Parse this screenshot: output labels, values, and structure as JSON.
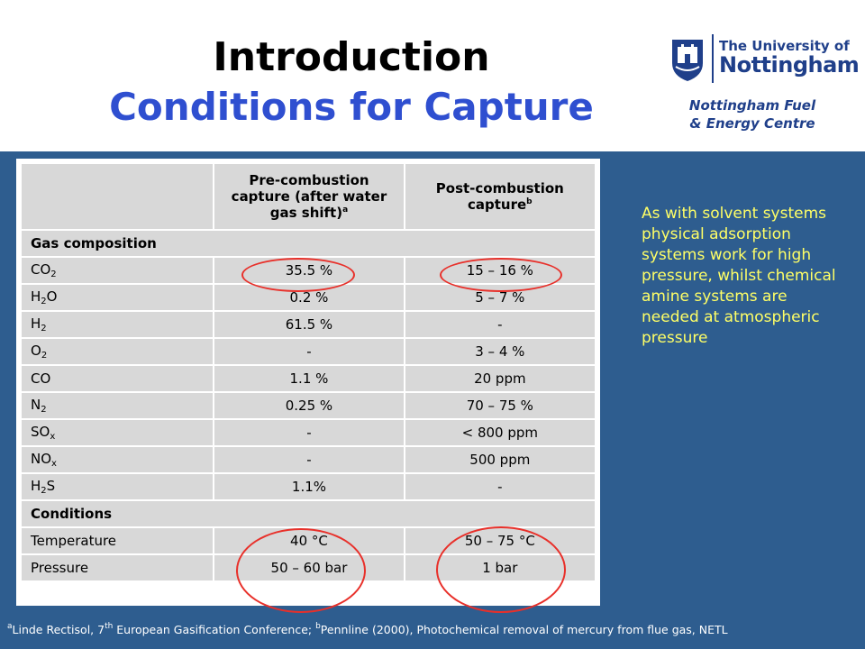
{
  "header": {
    "title": "Introduction",
    "subtitle": "Conditions for Capture",
    "logo_line1": "The University of",
    "logo_line2": "Nottingham",
    "centre_line1": "Nottingham Fuel",
    "centre_line2": "& Energy Centre"
  },
  "table": {
    "col1_header": "Pre-combustion capture (after water gas shift)",
    "col1_header_sup": "a",
    "col2_header": "Post-combustion capture",
    "col2_header_sup": "b",
    "section1": "Gas composition",
    "rows": [
      {
        "base": "CO",
        "sub": "2",
        "pre": "35.5 %",
        "post": "15 – 16 %"
      },
      {
        "base": "H",
        "sub": "2",
        "tail": "O",
        "pre": "0.2 %",
        "post": "5 – 7 %"
      },
      {
        "base": "H",
        "sub": "2",
        "pre": "61.5 %",
        "post": "-"
      },
      {
        "base": "O",
        "sub": "2",
        "pre": "-",
        "post": "3 – 4 %"
      },
      {
        "base": "CO",
        "pre": "1.1 %",
        "post": "20 ppm"
      },
      {
        "base": "N",
        "sub": "2",
        "pre": "0.25 %",
        "post": "70 – 75 %"
      },
      {
        "base": "SO",
        "sub": "x",
        "pre": "-",
        "post": "< 800 ppm"
      },
      {
        "base": "NO",
        "sub": "x",
        "pre": "-",
        "post": "500 ppm"
      },
      {
        "base": "H",
        "sub": "2",
        "tail": "S",
        "pre": "1.1%",
        "post": "-"
      }
    ],
    "section2": "Conditions",
    "conditions": [
      {
        "label": "Temperature",
        "pre": "40 °C",
        "post": "50 – 75 °C"
      },
      {
        "label": "Pressure",
        "pre": "50 – 60 bar",
        "post": "1 bar"
      }
    ]
  },
  "side_text": "As with solvent systems physical adsorption systems work for high pressure, whilst chemical amine systems are needed at atmospheric pressure",
  "footnote": {
    "a_mark": "a",
    "a_text_1": "Linde Rectisol, 7",
    "a_text_sup": "th",
    "a_text_2": " European Gasification Conference; ",
    "b_mark": "b",
    "b_text": "Pennline (2000), Photochemical removal of mercury from flue gas, NETL"
  },
  "colors": {
    "background_panel": "#2e5d8f",
    "title": "#000000",
    "subtitle": "#2f4fd0",
    "side_text": "#ffff66",
    "circle": "#e8302a",
    "table_cell": "#d8d8d8",
    "logo": "#1f3f8a"
  },
  "icons": {
    "logo": "university-castle-crest-icon"
  }
}
